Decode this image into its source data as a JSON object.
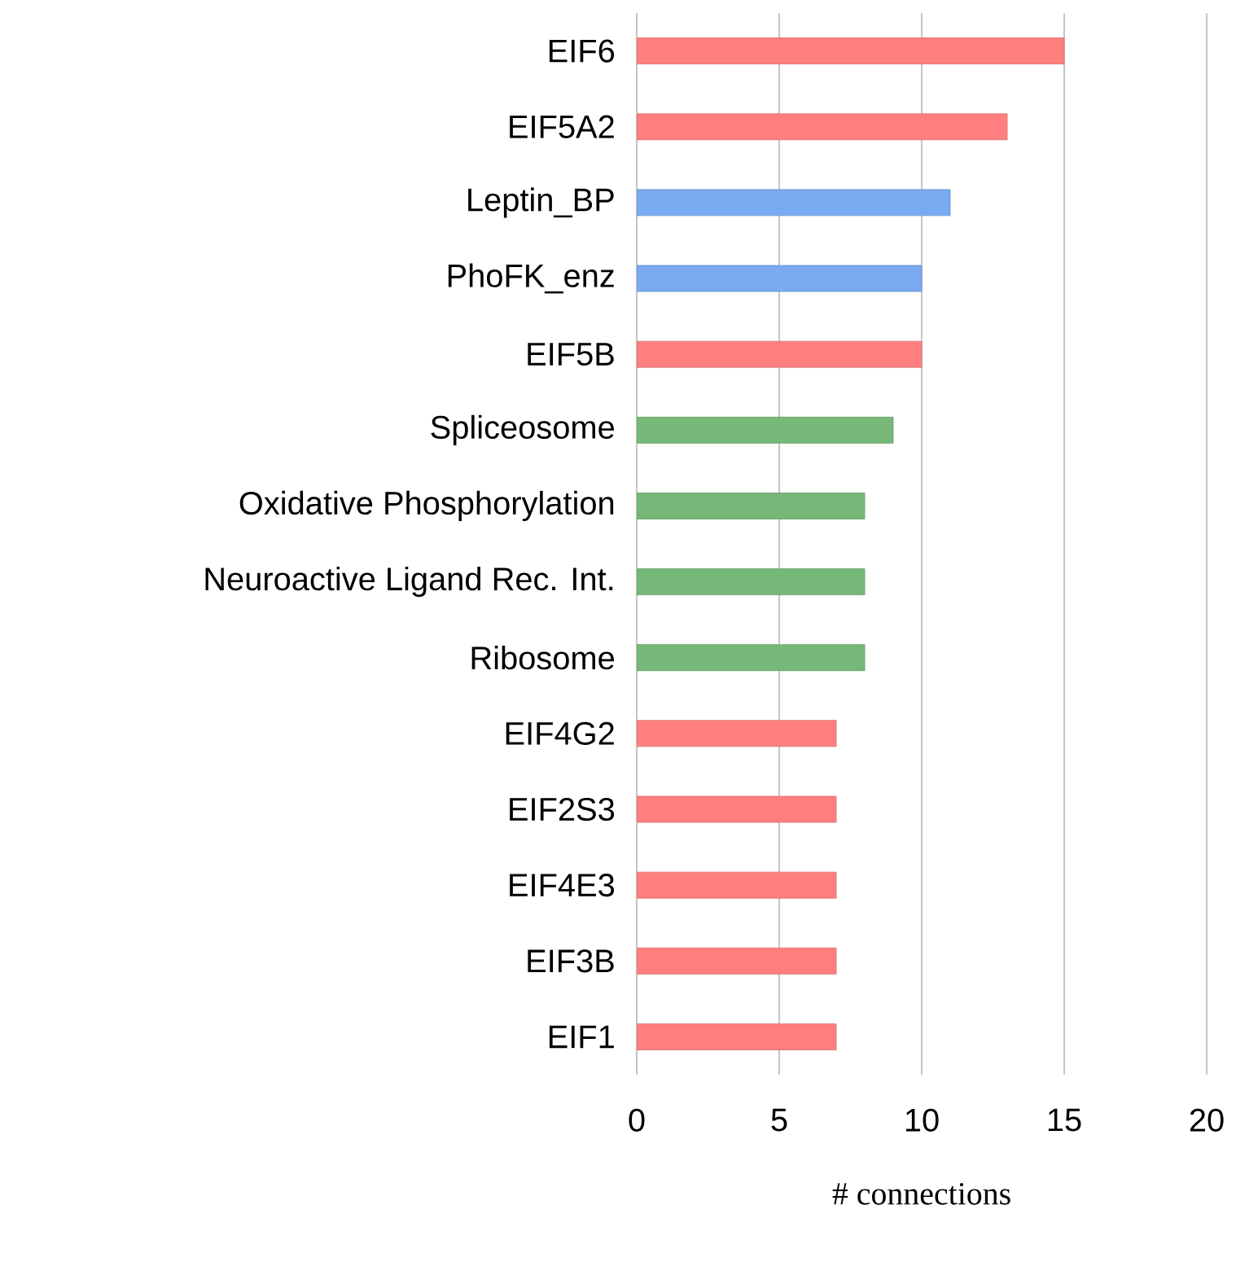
{
  "chart_data": {
    "type": "bar",
    "orientation": "horizontal",
    "categories": [
      "EIF6",
      "EIF5A2",
      "Leptin_BP",
      "PhoFK_enz",
      "EIF5B",
      "Spliceosome",
      "Oxidative Phosphorylation",
      "Neuroactive Ligand Rec. Int.",
      "Ribosome",
      "EIF4G2",
      "EIF2S3",
      "EIF4E3",
      "EIF3B",
      "EIF1"
    ],
    "values": [
      15,
      13,
      11,
      10,
      10,
      9,
      8,
      8,
      8,
      7,
      7,
      7,
      7,
      7
    ],
    "colors": [
      "#ff7f7f",
      "#ff7f7f",
      "#7aaaf0",
      "#7aaaf0",
      "#ff7f7f",
      "#76b877",
      "#76b877",
      "#76b877",
      "#76b877",
      "#ff7f7f",
      "#ff7f7f",
      "#ff7f7f",
      "#ff7f7f",
      "#ff7f7f"
    ],
    "xlim": [
      0,
      20
    ],
    "xticks": [
      0,
      5,
      10,
      15,
      20
    ],
    "xlabel": "# connections",
    "grid": "x"
  }
}
